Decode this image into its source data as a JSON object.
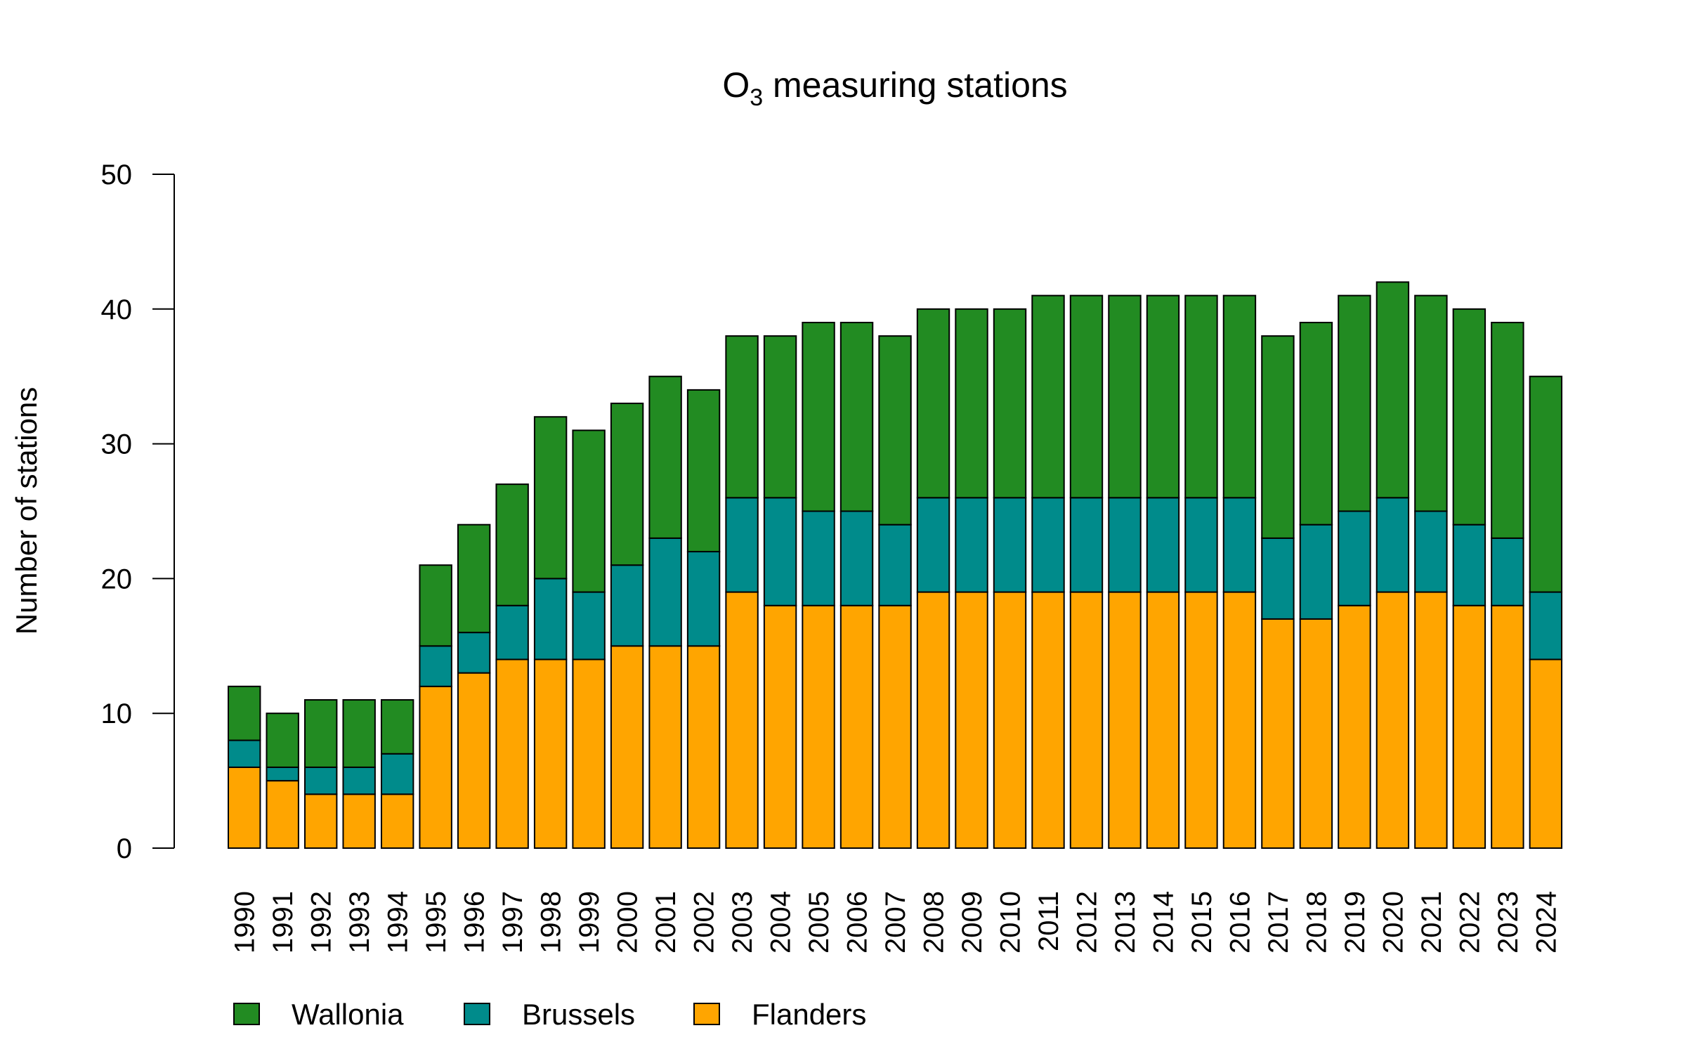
{
  "chart_data": {
    "type": "bar",
    "stacked": true,
    "title": "O",
    "title_subscript": "3",
    "title_rest": " measuring stations",
    "xlabel": "",
    "ylabel": "Number of stations",
    "ylim": [
      0,
      50
    ],
    "yticks": [
      0,
      10,
      20,
      30,
      40,
      50
    ],
    "grid": false,
    "legend_position": "bottom-left",
    "categories": [
      "1990",
      "1991",
      "1992",
      "1993",
      "1994",
      "1995",
      "1996",
      "1997",
      "1998",
      "1999",
      "2000",
      "2001",
      "2002",
      "2003",
      "2004",
      "2005",
      "2006",
      "2007",
      "2008",
      "2009",
      "2010",
      "2011",
      "2012",
      "2013",
      "2014",
      "2015",
      "2016",
      "2017",
      "2018",
      "2019",
      "2020",
      "2021",
      "2022",
      "2023",
      "2024"
    ],
    "series": [
      {
        "name": "Flanders",
        "color": "#FFA500",
        "values": [
          6,
          5,
          4,
          4,
          4,
          12,
          13,
          14,
          14,
          14,
          15,
          15,
          15,
          19,
          18,
          18,
          18,
          18,
          19,
          19,
          19,
          19,
          19,
          19,
          19,
          19,
          19,
          17,
          17,
          18,
          19,
          19,
          18,
          18,
          14
        ]
      },
      {
        "name": "Brussels",
        "color": "#008B8B",
        "values": [
          2,
          1,
          2,
          2,
          3,
          3,
          3,
          4,
          6,
          5,
          6,
          8,
          7,
          7,
          8,
          7,
          7,
          6,
          7,
          7,
          7,
          7,
          7,
          7,
          7,
          7,
          7,
          6,
          7,
          7,
          7,
          6,
          6,
          5,
          5
        ]
      },
      {
        "name": "Wallonia",
        "color": "#228B22",
        "values": [
          4,
          4,
          5,
          5,
          4,
          6,
          8,
          9,
          12,
          12,
          12,
          12,
          12,
          12,
          12,
          14,
          14,
          14,
          14,
          14,
          14,
          15,
          15,
          15,
          15,
          15,
          15,
          15,
          15,
          16,
          16,
          16,
          16,
          16,
          16
        ]
      }
    ],
    "legend": [
      "Wallonia",
      "Brussels",
      "Flanders"
    ]
  }
}
